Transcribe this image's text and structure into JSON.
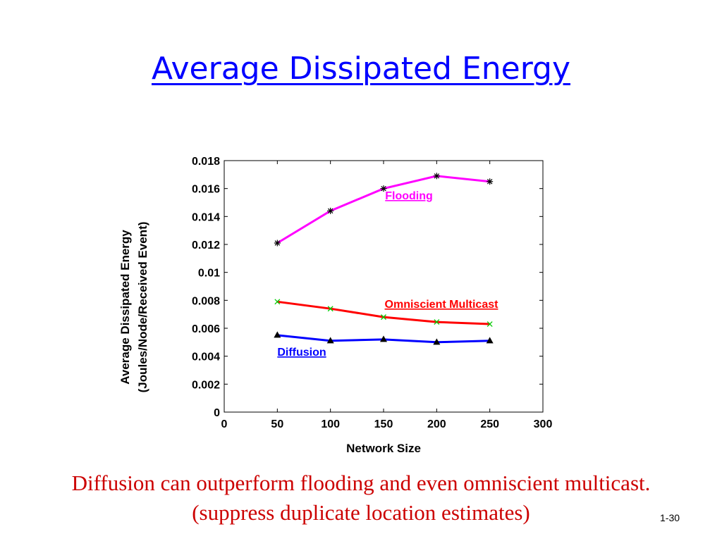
{
  "slide": {
    "title": "Average Dissipated Energy",
    "caption_line1": "Diffusion can outperform flooding and even omniscient multicast.",
    "caption_line2": "(suppress duplicate location estimates)",
    "slide_number": "1-30"
  },
  "chart_data": {
    "type": "line",
    "title": "",
    "xlabel": "Network Size",
    "ylabel_lines": [
      "Average Dissipated Energy",
      "(Joules/Node/Received Event)"
    ],
    "xlim": [
      0,
      300
    ],
    "ylim": [
      0,
      0.018
    ],
    "x_ticks": [
      0,
      50,
      100,
      150,
      200,
      250,
      300
    ],
    "x_tick_labels": [
      "0",
      "50",
      "100",
      "150",
      "200",
      "250",
      "300"
    ],
    "y_ticks": [
      0,
      0.002,
      0.004,
      0.006,
      0.008,
      0.01,
      0.012,
      0.014,
      0.016,
      0.018
    ],
    "y_tick_labels": [
      "0",
      "0.002",
      "0.004",
      "0.006",
      "0.008",
      "0.01",
      "0.012",
      "0.014",
      "0.016",
      "0.018"
    ],
    "grid": false,
    "series": [
      {
        "name": "Flooding",
        "x": [
          50,
          100,
          150,
          200,
          250
        ],
        "y": [
          0.0121,
          0.0144,
          0.016,
          0.0169,
          0.0165
        ],
        "color": "#ff00ff",
        "marker": "asterisk",
        "marker_color": "#000000",
        "label_color": "#ff00ff"
      },
      {
        "name": "Omniscient Multicast",
        "x": [
          50,
          100,
          150,
          200,
          250
        ],
        "y": [
          0.0079,
          0.0074,
          0.0068,
          0.00645,
          0.0063
        ],
        "color": "#ff0000",
        "marker": "x",
        "marker_color": "#00cc00",
        "label_color": "#ff0000"
      },
      {
        "name": "Diffusion",
        "x": [
          50,
          100,
          150,
          200,
          250
        ],
        "y": [
          0.0055,
          0.0051,
          0.0052,
          0.005,
          0.0051
        ],
        "color": "#0000ff",
        "marker": "triangle",
        "marker_color": "#000000",
        "label_color": "#0000ff"
      }
    ]
  }
}
